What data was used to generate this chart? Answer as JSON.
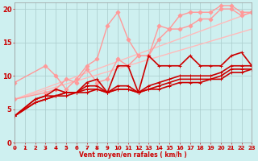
{
  "background_color": "#cef0f0",
  "grid_color": "#aacccc",
  "xlabel": "Vent moyen/en rafales ( km/h )",
  "x_min": 0,
  "x_max": 23,
  "y_min": 0,
  "y_max": 21,
  "yticks": [
    0,
    5,
    10,
    15,
    20
  ],
  "lines": [
    {
      "x": [
        0,
        23
      ],
      "y": [
        6.5,
        19.5
      ],
      "color": "#ffbbbb",
      "lw": 1.0,
      "marker": null
    },
    {
      "x": [
        0,
        23
      ],
      "y": [
        6.5,
        17.0
      ],
      "color": "#ffbbbb",
      "lw": 1.0,
      "marker": null
    },
    {
      "x": [
        0,
        3,
        4,
        5,
        6,
        7,
        8,
        9,
        10,
        11,
        12,
        13,
        14,
        15,
        16,
        17,
        18,
        19,
        20,
        21,
        22,
        23
      ],
      "y": [
        9.0,
        11.5,
        10.0,
        8.0,
        9.5,
        11.5,
        12.5,
        17.5,
        19.5,
        15.5,
        13.0,
        13.0,
        15.5,
        17.0,
        19.0,
        19.5,
        19.5,
        19.5,
        20.5,
        20.5,
        19.5,
        19.5
      ],
      "color": "#ff9999",
      "lw": 1.0,
      "marker": "D",
      "ms": 2.5
    },
    {
      "x": [
        0,
        3,
        4,
        5,
        6,
        7,
        8,
        9,
        10,
        11,
        12,
        13,
        14,
        15,
        16,
        17,
        18,
        19,
        20,
        21,
        22,
        23
      ],
      "y": [
        6.5,
        7.5,
        8.0,
        9.5,
        9.0,
        11.0,
        9.0,
        9.5,
        12.5,
        11.5,
        13.0,
        13.0,
        17.5,
        17.0,
        17.0,
        17.5,
        18.5,
        18.5,
        20.0,
        20.0,
        19.0,
        19.5
      ],
      "color": "#ff9999",
      "lw": 1.0,
      "marker": "D",
      "ms": 2.5
    },
    {
      "x": [
        0,
        2,
        3,
        4,
        5,
        6,
        7,
        8,
        9,
        10,
        11,
        12,
        13,
        14,
        15,
        16,
        17,
        18,
        19,
        20,
        21,
        22,
        23
      ],
      "y": [
        4.0,
        6.5,
        7.0,
        8.0,
        7.5,
        7.5,
        9.0,
        9.5,
        7.5,
        11.5,
        11.5,
        7.5,
        13.0,
        11.5,
        11.5,
        11.5,
        13.0,
        11.5,
        11.5,
        11.5,
        13.0,
        13.5,
        11.5
      ],
      "color": "#cc0000",
      "lw": 1.2,
      "marker": "+",
      "ms": 3.5
    },
    {
      "x": [
        0,
        2,
        3,
        4,
        5,
        6,
        7,
        8,
        9,
        10,
        11,
        12,
        13,
        14,
        15,
        16,
        17,
        18,
        19,
        20,
        21,
        22,
        23
      ],
      "y": [
        4.0,
        6.5,
        7.0,
        7.0,
        7.5,
        7.5,
        8.5,
        8.5,
        7.5,
        8.5,
        8.5,
        7.5,
        8.5,
        9.0,
        9.5,
        10.0,
        10.0,
        10.0,
        10.0,
        10.5,
        11.5,
        11.5,
        11.5
      ],
      "color": "#cc0000",
      "lw": 1.2,
      "marker": "+",
      "ms": 3.5
    },
    {
      "x": [
        0,
        2,
        3,
        4,
        5,
        6,
        7,
        8,
        9,
        10,
        11,
        12,
        13,
        14,
        15,
        16,
        17,
        18,
        19,
        20,
        21,
        22,
        23
      ],
      "y": [
        4.0,
        6.0,
        6.5,
        7.0,
        7.5,
        7.5,
        8.0,
        8.0,
        7.5,
        8.0,
        8.0,
        7.5,
        8.0,
        8.5,
        9.0,
        9.5,
        9.5,
        9.5,
        9.5,
        10.0,
        11.0,
        11.0,
        11.0
      ],
      "color": "#cc0000",
      "lw": 1.2,
      "marker": "+",
      "ms": 3.5
    },
    {
      "x": [
        0,
        2,
        3,
        4,
        5,
        6,
        7,
        8,
        9,
        10,
        11,
        12,
        13,
        14,
        15,
        16,
        17,
        18,
        19,
        20,
        21,
        22,
        23
      ],
      "y": [
        4.0,
        6.0,
        6.5,
        7.0,
        7.0,
        7.5,
        7.5,
        8.0,
        7.5,
        8.0,
        8.0,
        7.5,
        8.0,
        8.0,
        8.5,
        9.0,
        9.0,
        9.0,
        9.5,
        9.5,
        10.5,
        10.5,
        11.0
      ],
      "color": "#cc0000",
      "lw": 1.2,
      "marker": "+",
      "ms": 3.5
    }
  ],
  "tick_fontsize": 5,
  "label_fontsize": 5.5,
  "arrow_color": "#cc0000"
}
